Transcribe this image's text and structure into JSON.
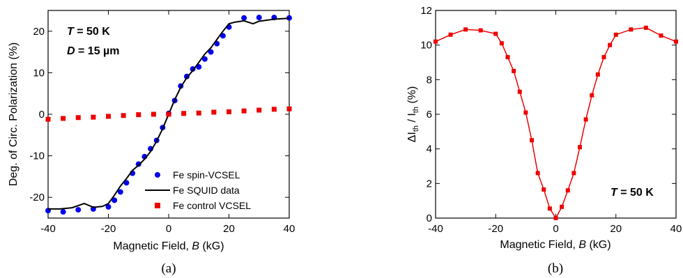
{
  "chart_data": [
    {
      "type": "scatter",
      "xlabel_pre": "Magnetic Field, ",
      "xlabel_var": "B",
      "xlabel_post": " (kG)",
      "ylabel": "Deg. of Circ. Polarization (%)",
      "xlim": [
        -40,
        40
      ],
      "ylim": [
        -25,
        25
      ],
      "xticks": [
        -40,
        -20,
        0,
        20,
        40
      ],
      "yticks": [
        -20,
        -10,
        0,
        10,
        20
      ],
      "grid": false,
      "legend_position": "bottom-right",
      "panel_label": "(a)",
      "annotations": [
        {
          "var": "T",
          "rest": " = 50 K"
        },
        {
          "var": "D",
          "rest": " = 15 µm"
        }
      ],
      "series": [
        {
          "name": "Fe spin-VCSEL",
          "color": "#0000ee",
          "marker": "circle",
          "x": [
            -40,
            -35,
            -30,
            -25,
            -20,
            -18,
            -16,
            -14,
            -12,
            -10,
            -8,
            -6,
            -4,
            -2,
            0,
            2,
            4,
            6,
            8,
            10,
            12,
            14,
            16,
            18,
            20,
            25,
            30,
            35,
            40
          ],
          "y": [
            -23.2,
            -23.5,
            -23.0,
            -22.8,
            -22.3,
            -20.7,
            -18.7,
            -16.5,
            -14.2,
            -12.0,
            -10.2,
            -8.3,
            -6.3,
            -3.2,
            0.2,
            3.3,
            6.8,
            9.1,
            10.9,
            11.4,
            13.3,
            15.0,
            17.0,
            18.9,
            21.0,
            23.2,
            23.3,
            23.3,
            23.2
          ]
        },
        {
          "name": "Fe SQUID data",
          "color": "#000000",
          "marker": "line",
          "x": [
            -40,
            -36,
            -32,
            -28,
            -25,
            -22,
            -20,
            -18,
            -16,
            -14,
            -12,
            -10,
            -8,
            -6,
            -4,
            -2,
            0,
            2,
            4,
            6,
            8,
            10,
            12,
            14,
            16,
            18,
            20,
            22,
            25,
            28,
            30,
            35,
            40
          ],
          "y": [
            -22.8,
            -22.8,
            -22.5,
            -21.5,
            -22.4,
            -22.2,
            -21.5,
            -19.5,
            -17.3,
            -15.5,
            -13.5,
            -12.3,
            -10.8,
            -9.0,
            -6.5,
            -3.5,
            0.0,
            3.5,
            6.5,
            8.8,
            10.5,
            12.5,
            14.5,
            16.0,
            18.0,
            20.0,
            21.8,
            22.2,
            22.5,
            21.8,
            22.4,
            22.9,
            23.1
          ]
        },
        {
          "name": "Fe control VCSEL",
          "color": "#ee0000",
          "marker": "square",
          "x": [
            -40,
            -35,
            -30,
            -25,
            -20,
            -15,
            -10,
            -5,
            0,
            5,
            10,
            15,
            20,
            25,
            30,
            35,
            40
          ],
          "y": [
            -1.2,
            -1.0,
            -0.8,
            -0.7,
            -0.5,
            -0.3,
            -0.1,
            0.0,
            0.0,
            0.2,
            0.3,
            0.5,
            0.6,
            0.8,
            1.0,
            1.2,
            1.3
          ]
        }
      ]
    },
    {
      "type": "line",
      "xlabel_pre": "Magnetic Field, ",
      "xlabel_var": "B",
      "xlabel_post": " (kG)",
      "ylabel_parts": [
        "ΔI",
        "th",
        " / I",
        "th",
        " (%)"
      ],
      "xlim": [
        -40,
        40
      ],
      "ylim": [
        0,
        12
      ],
      "xticks": [
        -40,
        -20,
        0,
        20,
        40
      ],
      "yticks": [
        0,
        2,
        4,
        6,
        8,
        10,
        12
      ],
      "grid": false,
      "panel_label": "(b)",
      "annotations": [
        {
          "var": "T",
          "rest": " = 50 K"
        }
      ],
      "series": [
        {
          "color": "#ee0000",
          "marker": "square",
          "x": [
            -40,
            -35,
            -30,
            -25,
            -20,
            -18,
            -16,
            -14,
            -12,
            -10,
            -8,
            -6,
            -4,
            -2,
            0,
            2,
            4,
            6,
            8,
            10,
            12,
            14,
            16,
            18,
            20,
            25,
            30,
            35,
            40
          ],
          "y": [
            10.2,
            10.6,
            10.9,
            10.85,
            10.65,
            10.1,
            9.3,
            8.5,
            7.3,
            6.1,
            4.5,
            2.6,
            1.65,
            0.55,
            0.0,
            0.65,
            1.6,
            2.6,
            4.1,
            5.7,
            7.1,
            8.3,
            9.3,
            10.0,
            10.6,
            10.9,
            11.0,
            10.55,
            10.2
          ]
        }
      ]
    }
  ]
}
